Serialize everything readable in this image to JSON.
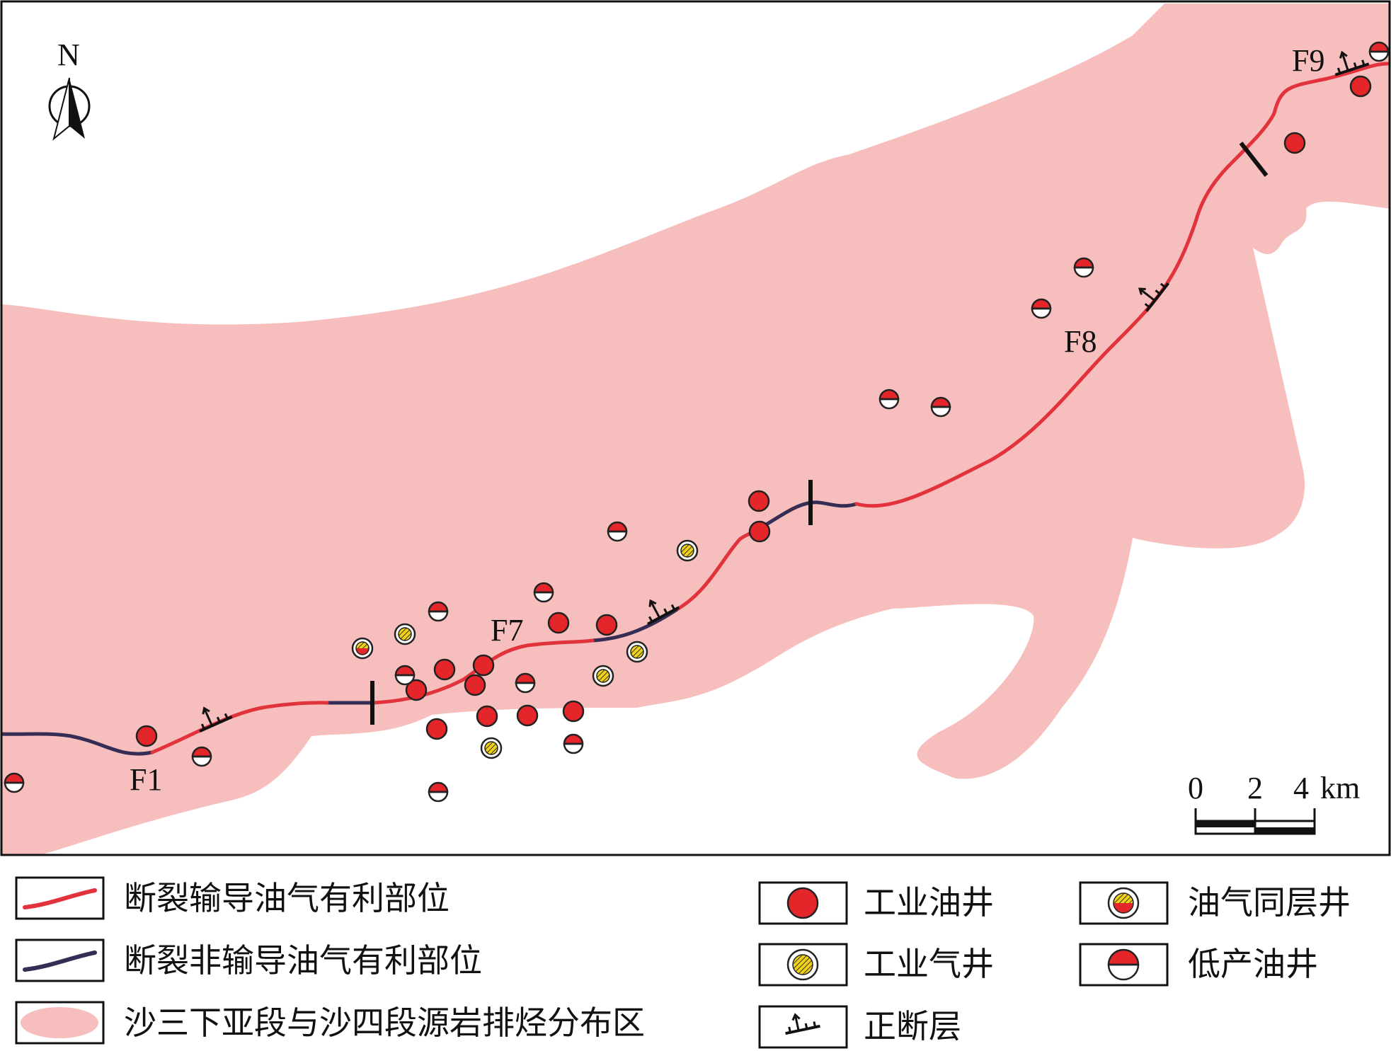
{
  "north_arrow": {
    "label": "N"
  },
  "fault_labels": {
    "f1": "F1",
    "f7": "F7",
    "f8": "F8",
    "f9": "F9"
  },
  "scale_bar": {
    "tick_0": "0",
    "tick_2": "2",
    "tick_4": "4",
    "unit": "km"
  },
  "colors": {
    "source_rock_area": "#f6bfbd",
    "favorable_segment": "#e2323b",
    "non_favorable_segment": "#362d55",
    "industrial_oil_well": "#e4262b",
    "gas_hatch": "#f0d21a"
  },
  "legend": {
    "favorable": "断裂输导油气有利部位",
    "non_favorable": "断裂非输导油气有利部位",
    "source_area": "沙三下亚段与沙四段源岩排烃分布区",
    "industrial_oil": "工业油井",
    "industrial_gas": "工业气井",
    "normal_fault": "正断层",
    "oil_gas_same_layer": "油气同层井",
    "low_yield_oil": "低产油井"
  }
}
